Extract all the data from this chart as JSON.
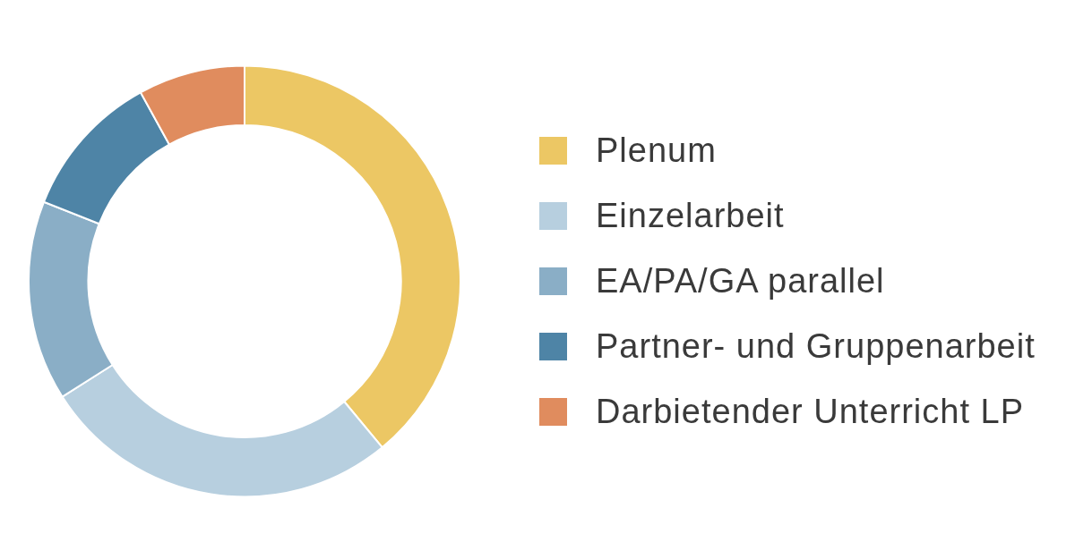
{
  "chart_data": {
    "type": "donut",
    "categories": [
      "Plenum",
      "Einzelarbeit",
      "EA/PA/GA parallel",
      "Partner- und Gruppenarbeit",
      "Darbietender Unterricht LP"
    ],
    "values": [
      39,
      27,
      15,
      11,
      8
    ],
    "colors": [
      "#ecc764",
      "#b7cfdf",
      "#8aaec6",
      "#4e84a6",
      "#e08c5e"
    ],
    "legend": "right"
  }
}
